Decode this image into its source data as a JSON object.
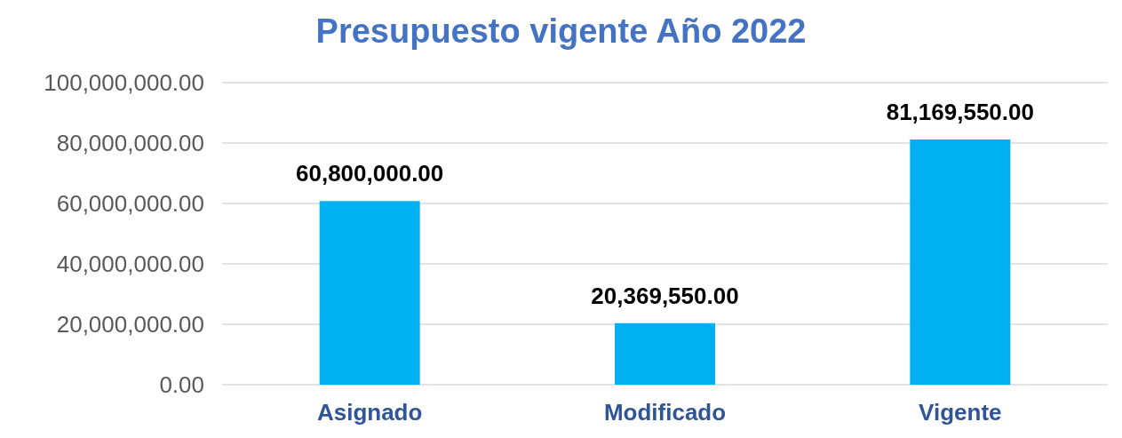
{
  "chart_data": {
    "type": "bar",
    "title": "Presupuesto vigente Año 2022",
    "categories": [
      "Asignado",
      "Modificado",
      "Vigente"
    ],
    "values": [
      60800000,
      20369550,
      81169550
    ],
    "color": "#00b0f0",
    "ylim": [
      0,
      100000000
    ],
    "yticks": [
      {
        "value": 0,
        "label": "0.00"
      },
      {
        "value": 20000000,
        "label": "20,000,000.00"
      },
      {
        "value": 40000000,
        "label": "40,000,000.00"
      },
      {
        "value": 60000000,
        "label": "60,000,000.00"
      },
      {
        "value": 80000000,
        "label": "80,000,000.00"
      },
      {
        "value": 100000000,
        "label": "100,000,000.00"
      }
    ],
    "value_labels": [
      "60,800,000.00",
      "20,369,550.00",
      "81,169,550.00"
    ],
    "grid": "y"
  }
}
